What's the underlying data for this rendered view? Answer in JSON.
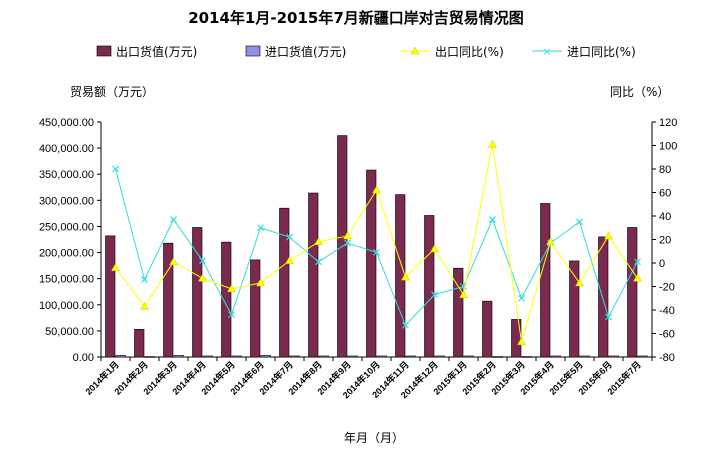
{
  "chart_data": {
    "type": "bar",
    "title": "2014年1月-2015年7月新疆口岸对吉贸易情况图",
    "ylabel": "贸易额（万元）",
    "y2label": "同比（%）",
    "xlabel": "年月（月）",
    "ylim": [
      0,
      450000
    ],
    "y2lim": [
      -80,
      120
    ],
    "yticks": [
      "450,000.00",
      "400,000.00",
      "350,000.00",
      "300,000.00",
      "250,000.00",
      "200,000.00",
      "150,000.00",
      "100,000.00",
      "50,000.00",
      "0.00"
    ],
    "y2ticks": [
      "120",
      "100",
      "80",
      "60",
      "40",
      "20",
      "0",
      "-20",
      "-40",
      "-60",
      "-80"
    ],
    "categories": [
      "2014年1月",
      "2014年2月",
      "2014年3月",
      "2014年4月",
      "2014年5月",
      "2014年6月",
      "2014年7月",
      "2014年8月",
      "2014年9月",
      "2014年10月",
      "2014年11月",
      "2014年12月",
      "2015年1月",
      "2015年2月",
      "2015年3月",
      "2015年4月",
      "2015年5月",
      "2015年6月",
      "2015年7月"
    ],
    "legend_position": "top",
    "grid": false,
    "series": [
      {
        "name": "出口货值(万元)",
        "kind": "bar",
        "axis": "left",
        "color": "#7a2a4e",
        "values": [
          232000,
          53000,
          218000,
          248000,
          220000,
          186000,
          285000,
          314000,
          424000,
          358000,
          311000,
          271000,
          170000,
          107000,
          72000,
          294000,
          184000,
          230000,
          248000
        ]
      },
      {
        "name": "进口货值(万元)",
        "kind": "bar",
        "axis": "left",
        "color": "#8f8fe8",
        "values": [
          3000,
          1000,
          3000,
          2000,
          2000,
          3000,
          2000,
          2000,
          2000,
          2000,
          2000,
          2000,
          2000,
          1000,
          1000,
          2000,
          2000,
          2000,
          2000
        ]
      },
      {
        "name": "出口同比(%)",
        "kind": "line",
        "axis": "right",
        "color": "#ffff00",
        "values": [
          -4,
          -37,
          1,
          -13,
          -22,
          -17,
          2,
          18,
          23,
          62,
          -12,
          12,
          -27,
          101,
          -67,
          18,
          -17,
          23,
          -13
        ]
      },
      {
        "name": "进口同比(%)",
        "kind": "line",
        "axis": "right",
        "color": "#33dddd",
        "values": [
          80,
          -14,
          37,
          2,
          -44,
          30,
          22,
          1,
          17,
          9,
          -53,
          -27,
          -20,
          37,
          -30,
          17,
          35,
          -46,
          1
        ]
      }
    ]
  }
}
